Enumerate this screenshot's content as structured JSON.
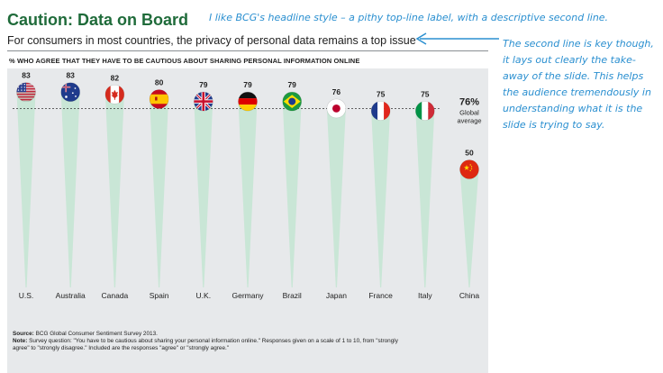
{
  "slide": {
    "title": "Caution: Data on Board",
    "subtitle": "For consumers in most countries, the privacy of personal data remains a top issue",
    "question": "% WHO AGREE THAT THEY HAVE TO BE CAUTIOUS ABOUT SHARING PERSONAL INFORMATION ONLINE",
    "source_label": "Source:",
    "source_text": "BCG Global Consumer Sentiment Survey 2013.",
    "note_label": "Note:",
    "note_line1": "Survey question: \"You have to be cautious about sharing your personal information online.\" Responses given on a scale of 1 to 10, from \"strongly",
    "note_line2": "agree\" to \"strongly disagree.\" Included are the responses \"agree\" or \"strongly agree.\""
  },
  "annotations": {
    "headline_note": "I like BCG's headline style – a pithy top-line label, with a descriptive second line.",
    "takeaway_note_lines": [
      "The second line is key though,",
      "it lays out clearly the take-",
      "away of the slide. This helps",
      "the audience tremendously in",
      "understanding what it is the",
      "slide is trying to say."
    ]
  },
  "colors": {
    "title": "#1f6b3a",
    "annotation": "#2a8fd0",
    "spike": "#c9e6d6",
    "chart_bg": "#e7e9eb"
  },
  "chart_data": {
    "type": "bar",
    "categories": [
      "U.S.",
      "Australia",
      "Canada",
      "Spain",
      "U.K.",
      "Germany",
      "Brazil",
      "Japan",
      "France",
      "Italy",
      "China"
    ],
    "values": [
      83,
      83,
      82,
      80,
      79,
      79,
      79,
      76,
      75,
      75,
      50
    ],
    "flags": [
      "us-flag-icon",
      "australia-flag-icon",
      "canada-flag-icon",
      "spain-flag-icon",
      "uk-flag-icon",
      "germany-flag-icon",
      "brazil-flag-icon",
      "japan-flag-icon",
      "france-flag-icon",
      "italy-flag-icon",
      "china-flag-icon"
    ],
    "reference_line": {
      "value": 76,
      "label": "76%",
      "sublabel_1": "Global",
      "sublabel_2": "average"
    },
    "ylim": [
      0,
      100
    ]
  }
}
